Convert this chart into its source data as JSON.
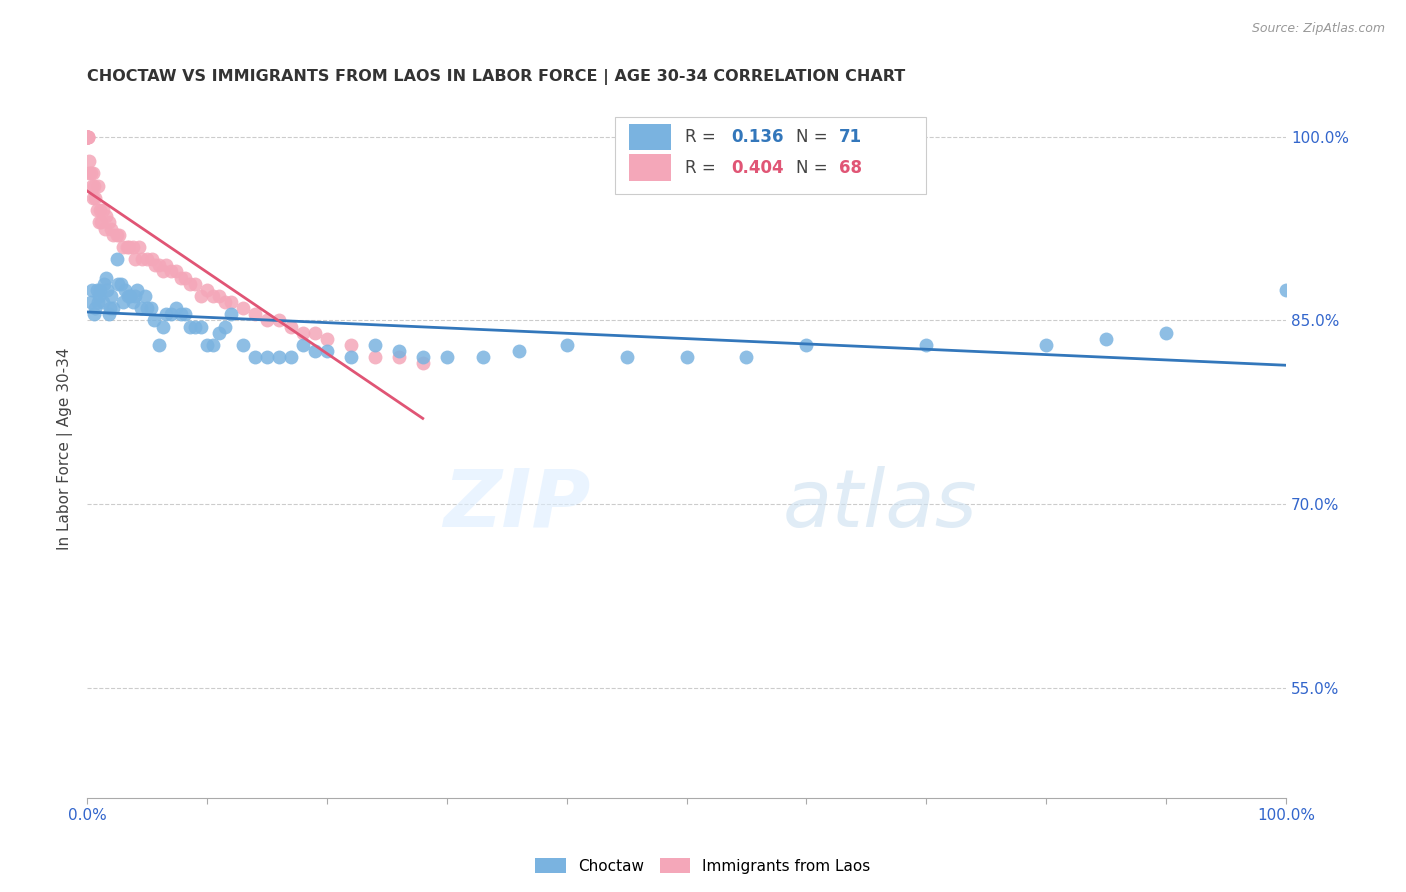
{
  "title": "CHOCTAW VS IMMIGRANTS FROM LAOS IN LABOR FORCE | AGE 30-34 CORRELATION CHART",
  "source": "Source: ZipAtlas.com",
  "ylabel": "In Labor Force | Age 30-34",
  "xlim": [
    0.0,
    1.0
  ],
  "ylim": [
    0.46,
    1.03
  ],
  "yticks": [
    0.55,
    0.7,
    0.85,
    1.0
  ],
  "ytick_labels": [
    "55.0%",
    "70.0%",
    "85.0%",
    "100.0%"
  ],
  "legend_label1": "Choctaw",
  "legend_label2": "Immigrants from Laos",
  "R1": 0.136,
  "N1": 71,
  "R2": 0.404,
  "N2": 68,
  "blue_color": "#7ab3e0",
  "pink_color": "#f4a7b9",
  "blue_line_color": "#3377bb",
  "pink_line_color": "#e05575",
  "choctaw_x": [
    0.003,
    0.004,
    0.006,
    0.007,
    0.008,
    0.009,
    0.01,
    0.011,
    0.013,
    0.014,
    0.016,
    0.017,
    0.018,
    0.019,
    0.02,
    0.022,
    0.025,
    0.026,
    0.028,
    0.03,
    0.032,
    0.034,
    0.036,
    0.038,
    0.04,
    0.042,
    0.045,
    0.048,
    0.05,
    0.053,
    0.056,
    0.06,
    0.063,
    0.066,
    0.07,
    0.074,
    0.078,
    0.082,
    0.086,
    0.09,
    0.095,
    0.1,
    0.105,
    0.11,
    0.115,
    0.12,
    0.13,
    0.14,
    0.15,
    0.16,
    0.17,
    0.18,
    0.19,
    0.2,
    0.22,
    0.24,
    0.26,
    0.28,
    0.3,
    0.33,
    0.36,
    0.4,
    0.45,
    0.5,
    0.55,
    0.6,
    0.7,
    0.8,
    0.85,
    0.9,
    1.0
  ],
  "choctaw_y": [
    0.865,
    0.875,
    0.855,
    0.86,
    0.875,
    0.865,
    0.87,
    0.875,
    0.865,
    0.88,
    0.885,
    0.875,
    0.855,
    0.86,
    0.87,
    0.86,
    0.9,
    0.88,
    0.88,
    0.865,
    0.875,
    0.87,
    0.87,
    0.865,
    0.87,
    0.875,
    0.86,
    0.87,
    0.86,
    0.86,
    0.85,
    0.83,
    0.845,
    0.855,
    0.855,
    0.86,
    0.855,
    0.855,
    0.845,
    0.845,
    0.845,
    0.83,
    0.83,
    0.84,
    0.845,
    0.855,
    0.83,
    0.82,
    0.82,
    0.82,
    0.82,
    0.83,
    0.825,
    0.825,
    0.82,
    0.83,
    0.825,
    0.82,
    0.82,
    0.82,
    0.825,
    0.83,
    0.82,
    0.82,
    0.82,
    0.83,
    0.83,
    0.83,
    0.835,
    0.84,
    0.875
  ],
  "laos_x": [
    0.0,
    0.0,
    0.0,
    0.0,
    0.0,
    0.0,
    0.0,
    0.001,
    0.001,
    0.001,
    0.002,
    0.002,
    0.003,
    0.004,
    0.005,
    0.005,
    0.006,
    0.007,
    0.008,
    0.009,
    0.01,
    0.011,
    0.012,
    0.013,
    0.015,
    0.016,
    0.018,
    0.02,
    0.022,
    0.025,
    0.027,
    0.03,
    0.033,
    0.035,
    0.038,
    0.04,
    0.043,
    0.046,
    0.05,
    0.054,
    0.057,
    0.06,
    0.063,
    0.066,
    0.07,
    0.074,
    0.078,
    0.082,
    0.086,
    0.09,
    0.095,
    0.1,
    0.105,
    0.11,
    0.115,
    0.12,
    0.13,
    0.14,
    0.15,
    0.16,
    0.17,
    0.18,
    0.19,
    0.2,
    0.22,
    0.24,
    0.26,
    0.28
  ],
  "laos_y": [
    1.0,
    1.0,
    1.0,
    1.0,
    1.0,
    1.0,
    1.0,
    1.0,
    1.0,
    1.0,
    0.98,
    0.97,
    0.97,
    0.96,
    0.97,
    0.95,
    0.96,
    0.95,
    0.94,
    0.96,
    0.93,
    0.94,
    0.93,
    0.94,
    0.925,
    0.935,
    0.93,
    0.925,
    0.92,
    0.92,
    0.92,
    0.91,
    0.91,
    0.91,
    0.91,
    0.9,
    0.91,
    0.9,
    0.9,
    0.9,
    0.895,
    0.895,
    0.89,
    0.895,
    0.89,
    0.89,
    0.885,
    0.885,
    0.88,
    0.88,
    0.87,
    0.875,
    0.87,
    0.87,
    0.865,
    0.865,
    0.86,
    0.855,
    0.85,
    0.85,
    0.845,
    0.84,
    0.84,
    0.835,
    0.83,
    0.82,
    0.82,
    0.815
  ]
}
